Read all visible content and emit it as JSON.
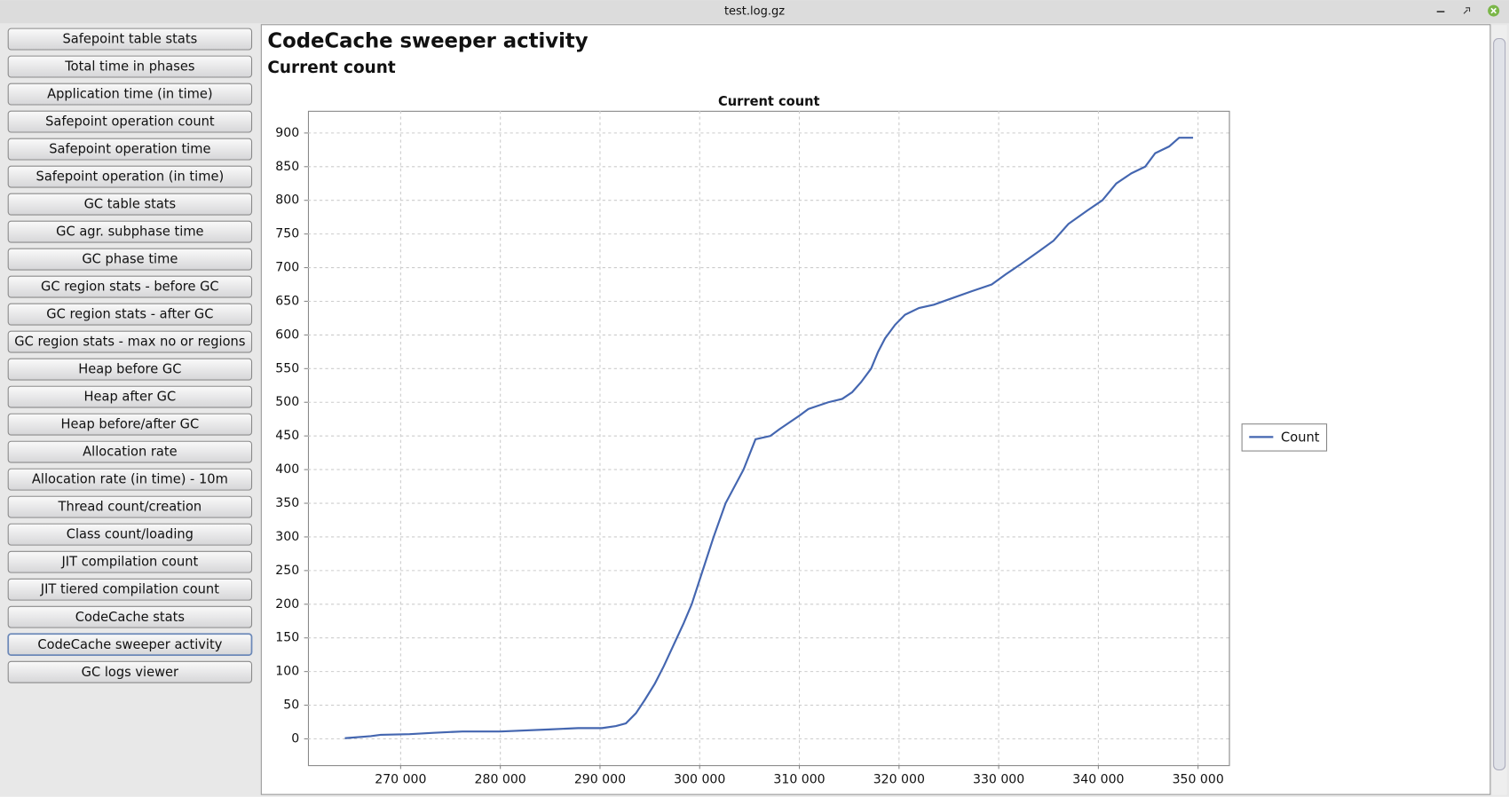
{
  "window_title": "test.log.gz",
  "menu": [
    "Safepoint table stats",
    "Total time in phases",
    "Application time (in time)",
    "Safepoint operation count",
    "Safepoint operation time",
    "Safepoint operation (in time)",
    "GC table stats",
    "GC agr. subphase time",
    "GC phase time",
    "GC region stats - before GC",
    "GC region stats - after GC",
    "GC region stats - max no or regions",
    "Heap before GC",
    "Heap after GC",
    "Heap before/after GC",
    "Allocation rate",
    "Allocation rate (in time) - 10m",
    "Thread count/creation",
    "Class count/loading",
    "JIT compilation count",
    "JIT tiered compilation count",
    "CodeCache stats",
    "CodeCache sweeper activity",
    "GC logs viewer"
  ],
  "page_title": "CodeCache sweeper activity",
  "page_subtitle": "Current count",
  "chart_data": {
    "type": "line",
    "title": "Current count",
    "x": [
      264400,
      267000,
      268000,
      270900,
      273300,
      276200,
      280000,
      284900,
      287800,
      290200,
      291600,
      292600,
      293600,
      294500,
      295500,
      296400,
      297400,
      298400,
      299200,
      300300,
      301400,
      302600,
      304400,
      305600,
      307100,
      308000,
      309000,
      310000,
      310900,
      312900,
      314300,
      315300,
      316200,
      317200,
      317900,
      318600,
      319600,
      320600,
      322000,
      323500,
      325400,
      327300,
      329300,
      330700,
      332200,
      334100,
      335500,
      337000,
      338900,
      340400,
      341800,
      343300,
      344700,
      345700,
      347100,
      348100,
      349500
    ],
    "series": [
      {
        "name": "Count",
        "color": "#4466b0",
        "values": [
          1,
          4,
          6,
          7,
          9,
          11,
          11,
          14,
          16,
          16,
          19,
          23,
          38,
          58,
          82,
          108,
          140,
          172,
          200,
          250,
          300,
          350,
          400,
          445,
          450,
          460,
          470,
          480,
          490,
          500,
          505,
          515,
          530,
          550,
          575,
          595,
          615,
          630,
          640,
          645,
          655,
          665,
          675,
          690,
          705,
          725,
          740,
          765,
          785,
          800,
          825,
          840,
          850,
          870,
          880,
          893,
          893
        ]
      }
    ],
    "xlim": [
      260700,
      353100
    ],
    "ylim": [
      -39,
      933
    ],
    "xticks": [
      {
        "value": 270000,
        "label": "270 000"
      },
      {
        "value": 280000,
        "label": "280 000"
      },
      {
        "value": 290000,
        "label": "290 000"
      },
      {
        "value": 300000,
        "label": "300 000"
      },
      {
        "value": 310000,
        "label": "310 000"
      },
      {
        "value": 320000,
        "label": "320 000"
      },
      {
        "value": 330000,
        "label": "330 000"
      },
      {
        "value": 340000,
        "label": "340 000"
      },
      {
        "value": 350000,
        "label": "350 000"
      }
    ],
    "yticks": [
      0,
      50,
      100,
      150,
      200,
      250,
      300,
      350,
      400,
      450,
      500,
      550,
      600,
      650,
      700,
      750,
      800,
      850,
      900
    ],
    "grid": true,
    "legend": "right"
  }
}
